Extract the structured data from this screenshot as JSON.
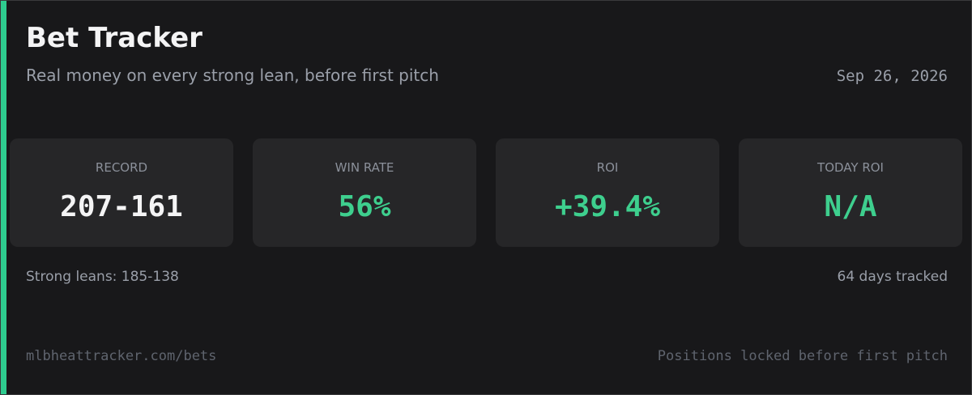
{
  "header": {
    "title": "Bet Tracker",
    "subtitle": "Real money on every strong lean, before first pitch",
    "date": "Sep 26, 2026"
  },
  "stats": [
    {
      "label": "RECORD",
      "value": "207-161",
      "color": "#f4f4f5"
    },
    {
      "label": "WIN RATE",
      "value": "56%",
      "color": "#3ecf8e"
    },
    {
      "label": "ROI",
      "value": "+39.4%",
      "color": "#3ecf8e"
    },
    {
      "label": "TODAY ROI",
      "value": "N/A",
      "color": "#3ecf8e"
    }
  ],
  "summary": {
    "left": "Strong leans: 185-138",
    "right": "64 days tracked"
  },
  "footer": {
    "left": "mlbheattracker.com/bets",
    "right": "Positions locked before first pitch"
  }
}
